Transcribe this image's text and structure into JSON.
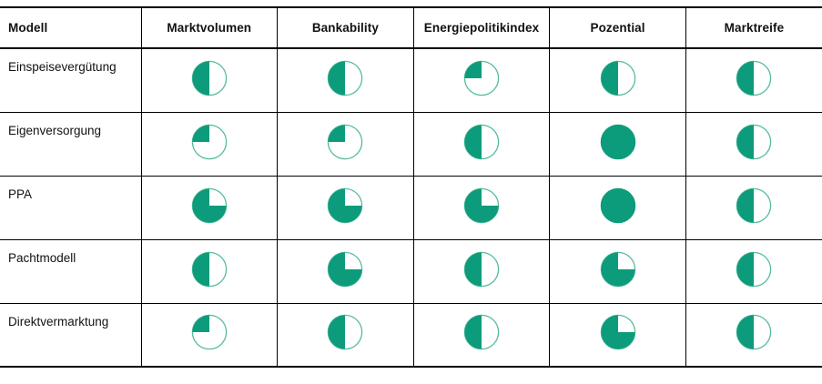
{
  "accent_color": "#0d9c7b",
  "outline_color": "#55bb9d",
  "line_color": "#000000",
  "table": {
    "columns": [
      "Modell",
      "Marktvolumen",
      "Bankability",
      "Energiepolitikindex",
      "Pozential",
      "Marktreife"
    ],
    "rows": [
      {
        "label": "Einspeisevergütung",
        "values": [
          50,
          50,
          25,
          50,
          50
        ]
      },
      {
        "label": "Eigenversorgung",
        "values": [
          25,
          25,
          50,
          100,
          50
        ]
      },
      {
        "label": "PPA",
        "values": [
          75,
          75,
          75,
          100,
          50
        ]
      },
      {
        "label": "Pachtmodell",
        "values": [
          50,
          75,
          50,
          75,
          50
        ]
      },
      {
        "label": "Direktvermarktung",
        "values": [
          25,
          50,
          50,
          75,
          50
        ]
      }
    ]
  },
  "chart_data": {
    "type": "table",
    "representation": "harvey-ball-matrix",
    "fill_direction": "counterclockwise-from-top",
    "columns": [
      "Modell",
      "Marktvolumen",
      "Bankability",
      "Energiepolitikindex",
      "Pozential",
      "Marktreife"
    ],
    "rows": [
      {
        "label": "Einspeisevergütung",
        "values_percent": [
          50,
          50,
          25,
          50,
          50
        ]
      },
      {
        "label": "Eigenversorgung",
        "values_percent": [
          25,
          25,
          50,
          100,
          50
        ]
      },
      {
        "label": "PPA",
        "values_percent": [
          75,
          75,
          75,
          100,
          50
        ]
      },
      {
        "label": "Pachtmodell",
        "values_percent": [
          50,
          75,
          50,
          75,
          50
        ]
      },
      {
        "label": "Direktvermarktung",
        "values_percent": [
          25,
          50,
          50,
          75,
          50
        ]
      }
    ],
    "accent_color": "#0d9c7b"
  }
}
